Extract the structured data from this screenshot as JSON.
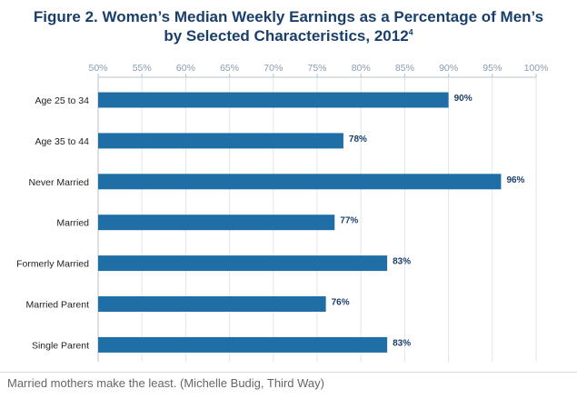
{
  "title": {
    "line1": "Figure 2. Women’s Median Weekly Earnings as a Percentage of Men’s",
    "line2": "by Selected Characteristics, 2012",
    "footnote": "4"
  },
  "caption": "Married mothers make the least. (Michelle Budig, Third Way)",
  "colors": {
    "bar": "#1f6fa6",
    "title": "#1b3f6b",
    "grid": "#e1e6ec"
  },
  "chart_data": {
    "type": "bar",
    "orientation": "horizontal",
    "title": "Figure 2. Women’s Median Weekly Earnings as a Percentage of Men’s by Selected Characteristics, 2012",
    "categories": [
      "Age 25 to 34",
      "Age 35 to 44",
      "Never Married",
      "Married",
      "Formerly Married",
      "Married Parent",
      "Single Parent"
    ],
    "values": [
      90,
      78,
      96,
      77,
      83,
      76,
      83
    ],
    "value_labels": [
      "90%",
      "78%",
      "96%",
      "77%",
      "83%",
      "76%",
      "83%"
    ],
    "xlim": [
      50,
      100
    ],
    "xticks": [
      50,
      55,
      60,
      65,
      70,
      75,
      80,
      85,
      90,
      95,
      100
    ],
    "xtick_labels": [
      "50%",
      "55%",
      "60%",
      "65%",
      "70%",
      "75%",
      "80%",
      "85%",
      "90%",
      "95%",
      "100%"
    ],
    "xlabel": "",
    "ylabel": "",
    "grid": true,
    "axis_position": "top"
  }
}
